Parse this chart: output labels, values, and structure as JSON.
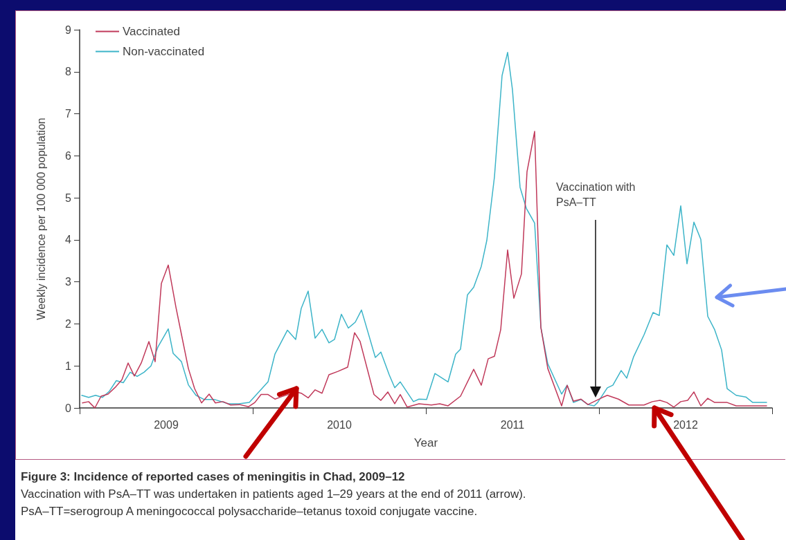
{
  "chart_data": {
    "type": "line",
    "title": "Figure 3: Incidence of reported cases of meningitis in Chad, 2009–12",
    "subtitle": "Vaccination with PsA–TT was undertaken in patients aged 1–29 years at the end of 2011 (arrow).",
    "annotations": [
      "Vaccination with PsA–TT",
      "PsA–TT=serogroup A meningococcal polysaccharide–tetanus toxoid conjugate vaccine."
    ],
    "xlabel": "Year",
    "ylabel": "Weekly incidence per 100 000 population",
    "xlim": [
      2009,
      2013
    ],
    "xticks": [
      {
        "value": 2009,
        "label": null
      },
      {
        "value": 2009.5,
        "label": "2009"
      },
      {
        "value": 2010,
        "label": null
      },
      {
        "value": 2010.5,
        "label": "2010"
      },
      {
        "value": 2011,
        "label": null
      },
      {
        "value": 2011.5,
        "label": "2011"
      },
      {
        "value": 2012,
        "label": null
      },
      {
        "value": 2012.5,
        "label": "2012"
      },
      {
        "value": 2013,
        "label": null
      }
    ],
    "ylim": [
      0,
      9
    ],
    "yticks": [
      0,
      1,
      2,
      3,
      4,
      5,
      6,
      7,
      8,
      9
    ],
    "grid": false,
    "legend": "top left",
    "marker": "none",
    "line_style": "solid",
    "series": [
      {
        "name": "Vaccinated",
        "color": "#c0395a",
        "x": [
          2009.016,
          2009.052,
          2009.088,
          2009.124,
          2009.164,
          2009.208,
          2009.244,
          2009.28,
          2009.316,
          2009.356,
          2009.4,
          2009.436,
          2009.472,
          2009.512,
          2009.556,
          2009.592,
          2009.628,
          2009.664,
          2009.704,
          2009.748,
          2009.784,
          2009.828,
          2009.872,
          2009.924,
          2009.976,
          2010.012,
          2010.048,
          2010.088,
          2010.128,
          2010.168,
          2010.252,
          2010.28,
          2010.32,
          2010.36,
          2010.4,
          2010.44,
          2010.492,
          2010.548,
          2010.588,
          2010.62,
          2010.7,
          2010.74,
          2010.78,
          2010.82,
          2010.852,
          2010.892,
          2010.96,
          2011.032,
          2011.08,
          2011.128,
          2011.2,
          2011.276,
          2011.32,
          2011.36,
          2011.396,
          2011.432,
          2011.472,
          2011.508,
          2011.552,
          2011.584,
          2011.628,
          2011.664,
          2011.704,
          2011.784,
          2011.816,
          2011.852,
          2011.896,
          2011.936,
          2012.02,
          2012.048,
          2012.112,
          2012.172,
          2012.26,
          2012.308,
          2012.352,
          2012.392,
          2012.432,
          2012.472,
          2012.512,
          2012.548,
          2012.588,
          2012.628,
          2012.668,
          2012.74,
          2012.792,
          2012.968
        ],
        "values": [
          0.12,
          0.15,
          0,
          0.28,
          0.33,
          0.5,
          0.67,
          1.07,
          0.76,
          1.07,
          1.58,
          1.1,
          2.96,
          3.4,
          2.4,
          1.67,
          0.94,
          0.46,
          0.12,
          0.33,
          0.12,
          0.15,
          0.07,
          0.08,
          0.03,
          0.13,
          0.32,
          0.32,
          0.21,
          0.27,
          0.38,
          0.35,
          0.24,
          0.43,
          0.35,
          0.79,
          0.87,
          0.97,
          1.79,
          1.58,
          0.32,
          0.18,
          0.38,
          0.1,
          0.32,
          0.02,
          0.1,
          0.07,
          0.1,
          0.05,
          0.28,
          0.92,
          0.54,
          1.17,
          1.23,
          1.86,
          3.76,
          2.61,
          3.19,
          5.62,
          6.58,
          1.92,
          0.94,
          0.05,
          0.54,
          0.16,
          0.21,
          0.08,
          0.25,
          0.3,
          0.21,
          0.07,
          0.07,
          0.15,
          0.18,
          0.13,
          0.02,
          0.15,
          0.18,
          0.38,
          0.05,
          0.23,
          0.13,
          0.13,
          0.05,
          0.05
        ]
      },
      {
        "name": "Non-vaccinated",
        "color": "#3cb4c8",
        "x": [
          2009.012,
          2009.052,
          2009.092,
          2009.132,
          2009.172,
          2009.212,
          2009.252,
          2009.292,
          2009.332,
          2009.372,
          2009.412,
          2009.452,
          2009.512,
          2009.54,
          2009.588,
          2009.628,
          2009.672,
          2009.72,
          2009.78,
          2009.86,
          2009.92,
          2009.98,
          2010.088,
          2010.128,
          2010.2,
          2010.248,
          2010.28,
          2010.32,
          2010.36,
          2010.4,
          2010.44,
          2010.472,
          2010.512,
          2010.552,
          2010.592,
          2010.628,
          2010.708,
          2010.74,
          2010.788,
          2010.82,
          2010.852,
          2010.928,
          2010.96,
          2011.004,
          2011.052,
          2011.128,
          2011.172,
          2011.2,
          2011.24,
          2011.276,
          2011.32,
          2011.352,
          2011.396,
          2011.44,
          2011.472,
          2011.5,
          2011.544,
          2011.58,
          2011.628,
          2011.664,
          2011.704,
          2011.784,
          2011.816,
          2011.852,
          2011.896,
          2011.936,
          2011.972,
          2011.992,
          2012.048,
          2012.08,
          2012.128,
          2012.16,
          2012.2,
          2012.26,
          2012.312,
          2012.348,
          2012.392,
          2012.432,
          2012.472,
          2012.508,
          2012.548,
          2012.588,
          2012.628,
          2012.668,
          2012.708,
          2012.74,
          2012.792,
          2012.848,
          2012.888,
          2012.968
        ],
        "values": [
          0.3,
          0.25,
          0.3,
          0.25,
          0.4,
          0.65,
          0.6,
          0.85,
          0.75,
          0.85,
          1.0,
          1.45,
          1.88,
          1.3,
          1.1,
          0.55,
          0.3,
          0.2,
          0.2,
          0.1,
          0.1,
          0.13,
          0.62,
          1.28,
          1.85,
          1.63,
          2.37,
          2.78,
          1.66,
          1.87,
          1.55,
          1.63,
          2.23,
          1.9,
          2.04,
          2.33,
          1.2,
          1.33,
          0.79,
          0.48,
          0.62,
          0.15,
          0.21,
          0.2,
          0.82,
          0.62,
          1.28,
          1.4,
          2.69,
          2.87,
          3.37,
          3.99,
          5.5,
          7.91,
          8.46,
          7.57,
          5.25,
          4.75,
          4.4,
          1.92,
          1.05,
          0.33,
          0.54,
          0.13,
          0.2,
          0.08,
          0.05,
          0.13,
          0.48,
          0.54,
          0.89,
          0.71,
          1.22,
          1.74,
          2.27,
          2.2,
          3.88,
          3.63,
          4.81,
          3.43,
          4.42,
          4.01,
          2.18,
          1.86,
          1.38,
          0.46,
          0.3,
          0.26,
          0.13,
          0.13
        ]
      }
    ]
  }
}
